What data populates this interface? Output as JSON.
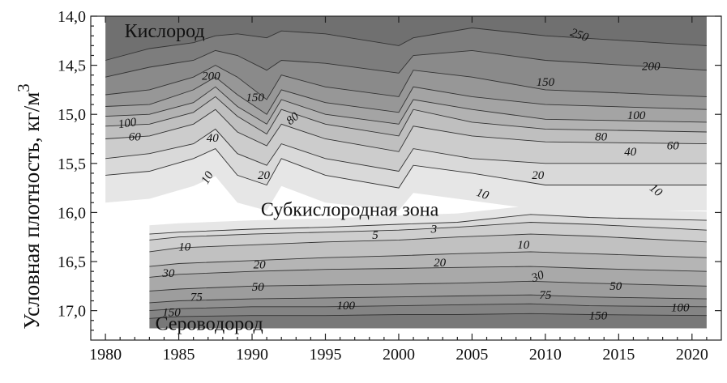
{
  "chart_data": {
    "type": "contour",
    "title": "",
    "xlabel": "",
    "ylabel": "Условная плотность, кг/м",
    "ylabel_superscript": "3",
    "xlim": [
      1979,
      2022
    ],
    "ylim": [
      14.0,
      17.3
    ],
    "y_inverted": true,
    "grid": false,
    "x_ticks": [
      1980,
      1985,
      1990,
      1995,
      2000,
      2005,
      2010,
      2015,
      2020
    ],
    "x_tick_labels": [
      "1980",
      "1985",
      "1990",
      "1995",
      "2000",
      "2005",
      "2010",
      "2015",
      "2020"
    ],
    "y_ticks": [
      14.0,
      14.5,
      15.0,
      15.5,
      16.0,
      16.5,
      17.0
    ],
    "y_tick_labels": [
      "14,0",
      "14,5",
      "15,0",
      "15,5",
      "16,0",
      "16,5",
      "17,0"
    ],
    "regions": [
      {
        "label": "Кислород",
        "x": 1981.3,
        "y": 14.17
      },
      {
        "label": "Субкислородная зона",
        "x": 1990.6,
        "y": 15.99
      },
      {
        "label": "Сероводород",
        "x": 1983.4,
        "y": 17.15
      }
    ],
    "oxygen_isolines": [
      {
        "value": 250,
        "sigma": [
          14.45,
          14.33,
          14.27,
          14.2,
          14.18,
          14.22,
          14.15,
          14.18,
          14.3,
          14.22,
          14.12,
          14.2,
          14.3
        ]
      },
      {
        "value": 200,
        "sigma": [
          14.62,
          14.52,
          14.45,
          14.35,
          14.4,
          14.55,
          14.45,
          14.48,
          14.58,
          14.4,
          14.35,
          14.45,
          14.55
        ]
      },
      {
        "value": 150,
        "sigma": [
          14.8,
          14.75,
          14.62,
          14.5,
          14.62,
          14.85,
          14.6,
          14.72,
          14.82,
          14.55,
          14.62,
          14.75,
          14.82
        ]
      },
      {
        "value": 100,
        "sigma": [
          14.92,
          14.9,
          14.75,
          14.62,
          14.8,
          15.0,
          14.75,
          14.88,
          14.98,
          14.72,
          14.82,
          14.9,
          14.95
        ]
      },
      {
        "value": 80,
        "sigma": [
          15.02,
          15.0,
          14.88,
          14.72,
          14.92,
          15.1,
          14.85,
          15.0,
          15.1,
          14.85,
          14.95,
          15.05,
          15.08
        ]
      },
      {
        "value": 60,
        "sigma": [
          15.12,
          15.1,
          14.98,
          14.82,
          15.02,
          15.2,
          14.95,
          15.1,
          15.22,
          14.95,
          15.08,
          15.15,
          15.18
        ]
      },
      {
        "value": 40,
        "sigma": [
          15.25,
          15.22,
          15.1,
          14.95,
          15.18,
          15.32,
          15.1,
          15.25,
          15.38,
          15.12,
          15.22,
          15.28,
          15.3
        ]
      },
      {
        "value": 20,
        "sigma": [
          15.45,
          15.4,
          15.3,
          15.15,
          15.4,
          15.52,
          15.3,
          15.45,
          15.58,
          15.35,
          15.45,
          15.5,
          15.5
        ]
      },
      {
        "value": 10,
        "sigma": [
          15.62,
          15.58,
          15.45,
          15.35,
          15.62,
          15.72,
          15.45,
          15.62,
          15.75,
          15.52,
          15.6,
          15.72,
          15.72
        ]
      }
    ],
    "oxygen_isoline_years": [
      1980,
      1983,
      1986,
      1987.5,
      1989,
      1991,
      1992,
      1995,
      2000,
      2001,
      2005,
      2010,
      2021
    ],
    "sulfide_isolines": [
      {
        "value": 3,
        "sigma": [
          16.22,
          16.2,
          16.17,
          16.15,
          16.12,
          16.1,
          16.02,
          16.05,
          16.08
        ]
      },
      {
        "value": 5,
        "sigma": [
          16.28,
          16.25,
          16.22,
          16.2,
          16.18,
          16.15,
          16.1,
          16.12,
          16.18
        ]
      },
      {
        "value": 10,
        "sigma": [
          16.4,
          16.36,
          16.33,
          16.3,
          16.28,
          16.25,
          16.22,
          16.24,
          16.3
        ]
      },
      {
        "value": 20,
        "sigma": [
          16.55,
          16.52,
          16.49,
          16.46,
          16.44,
          16.42,
          16.4,
          16.42,
          16.46
        ]
      },
      {
        "value": 30,
        "sigma": [
          16.66,
          16.63,
          16.6,
          16.58,
          16.57,
          16.56,
          16.55,
          16.57,
          16.6
        ]
      },
      {
        "value": 50,
        "sigma": [
          16.8,
          16.78,
          16.75,
          16.74,
          16.73,
          16.72,
          16.7,
          16.72,
          16.75
        ]
      },
      {
        "value": 75,
        "sigma": [
          16.92,
          16.9,
          16.88,
          16.87,
          16.86,
          16.85,
          16.84,
          16.86,
          16.88
        ]
      },
      {
        "value": 100,
        "sigma": [
          17.0,
          16.98,
          16.96,
          16.96,
          16.95,
          16.94,
          16.93,
          16.95,
          16.96
        ]
      },
      {
        "value": 150,
        "sigma": [
          17.08,
          17.06,
          17.05,
          17.05,
          17.04,
          17.04,
          17.03,
          17.04,
          17.05
        ]
      }
    ],
    "sulfide_isoline_years": [
      1983,
      1985,
      1990,
      1995,
      2000,
      2004,
      2009,
      2013,
      2021
    ],
    "contour_labels": [
      {
        "text": "250",
        "x": 2012.3,
        "y": 14.2,
        "angle": 20
      },
      {
        "text": "200",
        "x": 1987.2,
        "y": 14.62,
        "angle": 0
      },
      {
        "text": "200",
        "x": 2017.2,
        "y": 14.52,
        "angle": 0
      },
      {
        "text": "150",
        "x": 1990.2,
        "y": 14.84,
        "angle": 0
      },
      {
        "text": "150",
        "x": 2010.0,
        "y": 14.68,
        "angle": 0
      },
      {
        "text": "100",
        "x": 1981.5,
        "y": 15.1,
        "angle": -8
      },
      {
        "text": "100",
        "x": 2016.2,
        "y": 15.02,
        "angle": 0
      },
      {
        "text": "80",
        "x": 1992.8,
        "y": 15.05,
        "angle": -40
      },
      {
        "text": "80",
        "x": 2013.8,
        "y": 15.24,
        "angle": 0
      },
      {
        "text": "60",
        "x": 1982.0,
        "y": 15.24,
        "angle": 0
      },
      {
        "text": "60",
        "x": 2018.7,
        "y": 15.33,
        "angle": 0
      },
      {
        "text": "40",
        "x": 1987.3,
        "y": 15.25,
        "angle": 0
      },
      {
        "text": "40",
        "x": 2015.8,
        "y": 15.39,
        "angle": 0
      },
      {
        "text": "20",
        "x": 1990.8,
        "y": 15.63,
        "angle": 0
      },
      {
        "text": "20",
        "x": 2009.5,
        "y": 15.63,
        "angle": 0
      },
      {
        "text": "10",
        "x": 1987.0,
        "y": 15.65,
        "angle": -60
      },
      {
        "text": "10",
        "x": 2005.7,
        "y": 15.82,
        "angle": 20
      },
      {
        "text": "10",
        "x": 2017.5,
        "y": 15.78,
        "angle": 40
      },
      {
        "text": "5",
        "x": 1998.4,
        "y": 16.24,
        "angle": 0
      },
      {
        "text": "3",
        "x": 2002.4,
        "y": 16.18,
        "angle": 0
      },
      {
        "text": "10",
        "x": 1985.4,
        "y": 16.36,
        "angle": 0
      },
      {
        "text": "10",
        "x": 2008.5,
        "y": 16.34,
        "angle": 0
      },
      {
        "text": "20",
        "x": 1990.5,
        "y": 16.54,
        "angle": 0
      },
      {
        "text": "20",
        "x": 2002.8,
        "y": 16.52,
        "angle": 0
      },
      {
        "text": "30",
        "x": 1984.3,
        "y": 16.63,
        "angle": 0
      },
      {
        "text": "30",
        "x": 2009.5,
        "y": 16.66,
        "angle": -20
      },
      {
        "text": "50",
        "x": 1990.4,
        "y": 16.77,
        "angle": 0
      },
      {
        "text": "50",
        "x": 2014.8,
        "y": 16.76,
        "angle": 0
      },
      {
        "text": "75",
        "x": 1986.2,
        "y": 16.87,
        "angle": 0
      },
      {
        "text": "75",
        "x": 2010.0,
        "y": 16.85,
        "angle": 0
      },
      {
        "text": "100",
        "x": 1996.4,
        "y": 16.96,
        "angle": 0
      },
      {
        "text": "100",
        "x": 2019.2,
        "y": 16.98,
        "angle": 0
      },
      {
        "text": "150",
        "x": 1984.5,
        "y": 17.03,
        "angle": 0
      },
      {
        "text": "150",
        "x": 2013.6,
        "y": 17.06,
        "angle": 0
      }
    ]
  }
}
